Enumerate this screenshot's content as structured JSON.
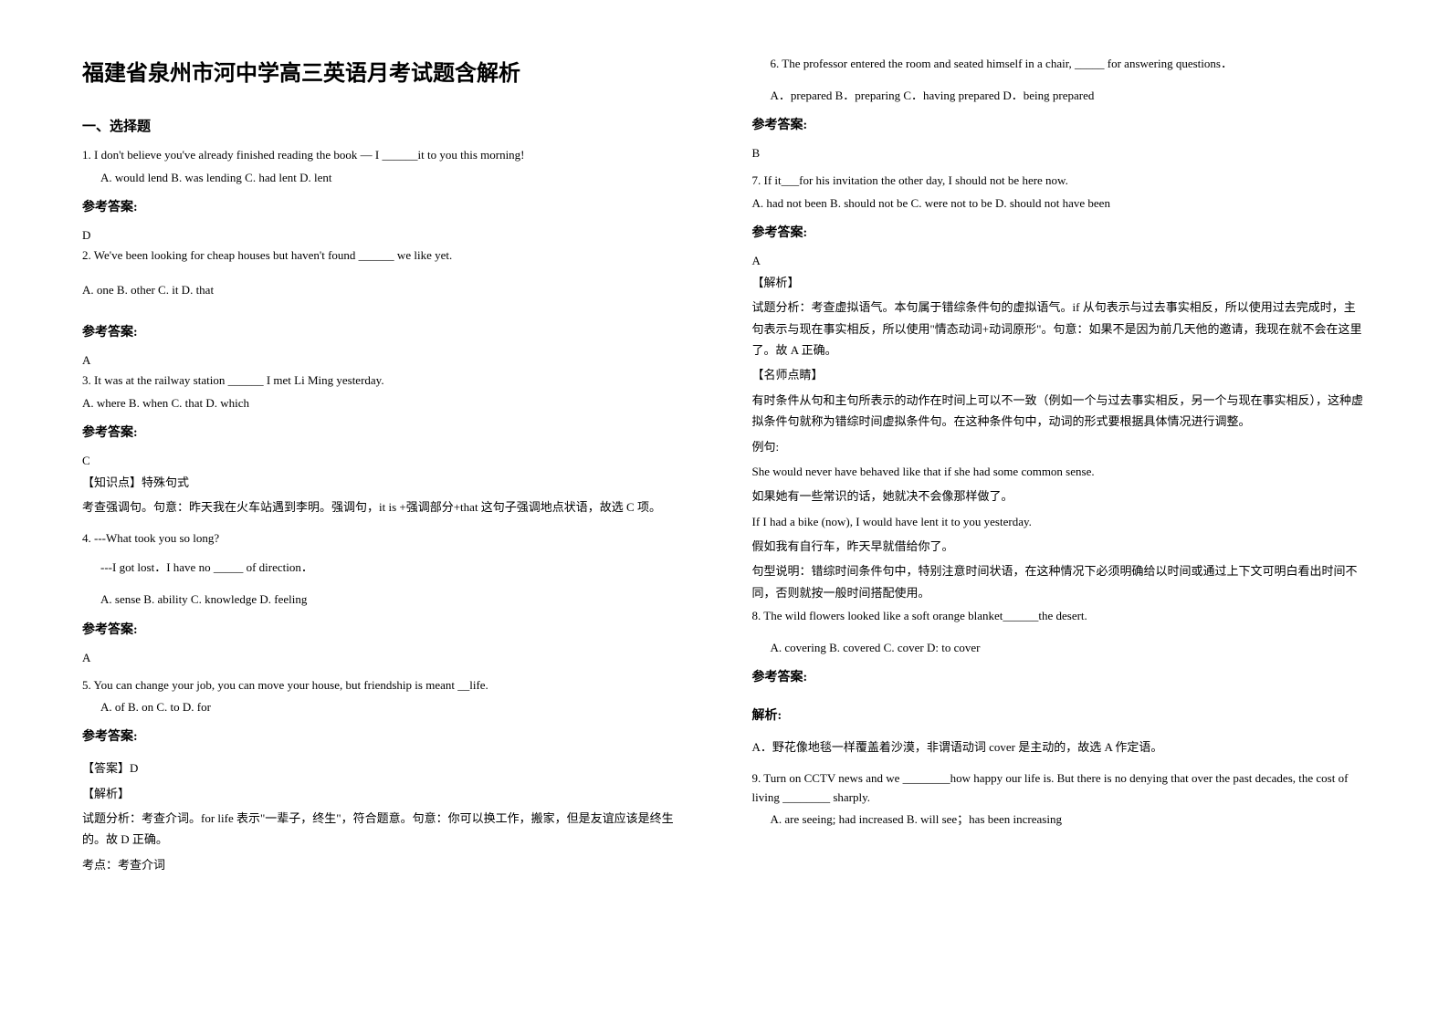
{
  "title": "福建省泉州市河中学高三英语月考试题含解析",
  "section1": "一、选择题",
  "q1": {
    "text": "1. I don't believe you've already finished reading the book — I ______it to you this morning!",
    "options": "A. would lend   B. was lending   C. had lent   D. lent",
    "answerLabel": "参考答案:",
    "answer": "D"
  },
  "q2": {
    "text": "2. We've been looking for cheap houses but haven't found ______ we like yet.",
    "options": "A. one        B. other        C. it          D. that",
    "answerLabel": "参考答案:",
    "answer": "A"
  },
  "q3": {
    "text": "3. It was at the railway station ______ I met Li Ming yesterday.",
    "options": "A. where  B. when  C. that  D. which",
    "answerLabel": "参考答案:",
    "answer": "C",
    "knowledge": "【知识点】特殊句式",
    "explain": "考查强调句。句意：昨天我在火车站遇到李明。强调句，it is +强调部分+that 这句子强调地点状语，故选 C 项。"
  },
  "q4": {
    "text": "4. ---What took you so long?",
    "text2": "---I got lost．I have no _____ of direction．",
    "options": "A. sense       B. ability       C. knowledge       D. feeling",
    "answerLabel": "参考答案:",
    "answer": "A"
  },
  "q5": {
    "text": "5. You can change your job, you can move your house, but friendship is meant __life.",
    "options": "A. of       B. on                          C. to        D. for",
    "answerLabel": "参考答案:",
    "answerTag": "【答案】D",
    "explainTag": "【解析】",
    "explain": "试题分析：考查介词。for life 表示\"一辈子，终生\"，符合题意。句意：你可以换工作，搬家，但是友谊应该是终生的。故 D 正确。",
    "point": "考点：考查介词"
  },
  "q6": {
    "text": "6. The professor entered the room and seated himself in a chair, _____ for answering questions．",
    "options": "A．prepared       B．preparing       C．having prepared    D．being prepared",
    "answerLabel": "参考答案:",
    "answer": "B"
  },
  "q7": {
    "text": "7. If it___for his invitation the other day, I should not be here now.",
    "options": "A. had not been B. should not be        C. were not to be        D. should not have been",
    "answerLabel": "参考答案:",
    "answer": "A",
    "explainTag": "【解析】",
    "explain1": "试题分析：考查虚拟语气。本句属于错综条件句的虚拟语气。if 从句表示与过去事实相反，所以使用过去完成时，主句表示与现在事实相反，所以使用\"情态动词+动词原形\"。句意：如果不是因为前几天他的邀请，我现在就不会在这里了。故 A 正确。",
    "tipTag": "【名师点睛】",
    "tip1": "有时条件从句和主句所表示的动作在时间上可以不一致（例如一个与过去事实相反，另一个与现在事实相反），这种虚拟条件句就称为错综时间虚拟条件句。在这种条件句中，动词的形式要根据具体情况进行调整。",
    "exampleLabel": "例句:",
    "example1": "She would never have behaved like that if she had some common sense.",
    "example1cn": "如果她有一些常识的话，她就决不会像那样做了。",
    "example2": "If I had a bike (now), I would have lent it to you yesterday.",
    "example2cn": "假如我有自行车，昨天早就借给你了。",
    "tip2": "句型说明：错综时间条件句中，特别注意时间状语，在这种情况下必须明确给以时间或通过上下文可明白看出时间不同，否则就按一般时间搭配使用。"
  },
  "q8": {
    "text": "8.  The wild flowers looked like a soft orange blanket______the desert.",
    "options": "A. covering     B. covered     C. cover      D: to cover",
    "answerLabel": "参考答案:",
    "explainLabel": "解析:",
    "explain": "A．野花像地毯一样覆盖着沙漠，非谓语动词 cover 是主动的，故选 A 作定语。"
  },
  "q9": {
    "text": "9. Turn on CCTV news and we ________how happy our life is. But there is no denying that over the past decades, the cost of living ________ sharply.",
    "options": "A. are seeing; had increased                  B. will see；has been increasing"
  }
}
